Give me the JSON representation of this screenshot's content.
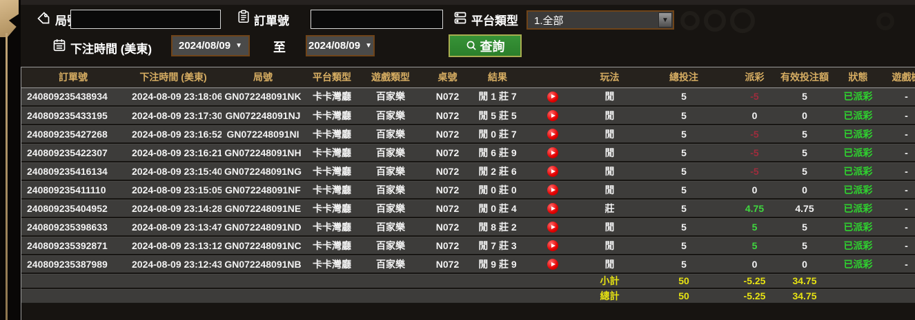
{
  "filters": {
    "round": {
      "label": "局號",
      "value": ""
    },
    "order": {
      "label": "訂單號",
      "value": ""
    },
    "platform": {
      "label": "平台類型",
      "value": "1.全部"
    },
    "bet_time": {
      "label": "下注時間 (美東)",
      "from": "2024/08/09",
      "to_label": "至",
      "to": "2024/08/09"
    },
    "query_label": "查詢"
  },
  "icons": [
    "tag-icon",
    "clipboard-icon",
    "platform-list-icon",
    "calendar-icon",
    "magnifier-icon",
    "replay-play-icon",
    "dropdown-caret-icon"
  ],
  "table": {
    "columns": [
      "訂單號",
      "下注時間 (美東)",
      "局號",
      "平台類型",
      "遊戲類型",
      "桌號",
      "結果",
      "",
      "玩法",
      "總投注",
      "派彩",
      "有效投注額",
      "狀態",
      "遊戲機"
    ],
    "rows": [
      {
        "order": "240809235438934",
        "time": "2024-08-09 23:18:06",
        "round": "GN072248091NK",
        "platform": "卡卡灣廳",
        "game": "百家樂",
        "table_no": "N072",
        "result": "閒 1 莊 7",
        "bet": "閒",
        "stake": "5",
        "payout": "-5",
        "valid": "5",
        "status": "已派彩",
        "extra": "-"
      },
      {
        "order": "240809235433195",
        "time": "2024-08-09 23:17:30",
        "round": "GN072248091NJ",
        "platform": "卡卡灣廳",
        "game": "百家樂",
        "table_no": "N072",
        "result": "閒 5 莊 5",
        "bet": "閒",
        "stake": "5",
        "payout": "0",
        "valid": "0",
        "status": "已派彩",
        "extra": "-"
      },
      {
        "order": "240809235427268",
        "time": "2024-08-09 23:16:52",
        "round": "GN072248091NI",
        "platform": "卡卡灣廳",
        "game": "百家樂",
        "table_no": "N072",
        "result": "閒 0 莊 7",
        "bet": "閒",
        "stake": "5",
        "payout": "-5",
        "valid": "5",
        "status": "已派彩",
        "extra": "-"
      },
      {
        "order": "240809235422307",
        "time": "2024-08-09 23:16:21",
        "round": "GN072248091NH",
        "platform": "卡卡灣廳",
        "game": "百家樂",
        "table_no": "N072",
        "result": "閒 6 莊 9",
        "bet": "閒",
        "stake": "5",
        "payout": "-5",
        "valid": "5",
        "status": "已派彩",
        "extra": "-"
      },
      {
        "order": "240809235416134",
        "time": "2024-08-09 23:15:40",
        "round": "GN072248091NG",
        "platform": "卡卡灣廳",
        "game": "百家樂",
        "table_no": "N072",
        "result": "閒 2 莊 6",
        "bet": "閒",
        "stake": "5",
        "payout": "-5",
        "valid": "5",
        "status": "已派彩",
        "extra": "-"
      },
      {
        "order": "240809235411110",
        "time": "2024-08-09 23:15:05",
        "round": "GN072248091NF",
        "platform": "卡卡灣廳",
        "game": "百家樂",
        "table_no": "N072",
        "result": "閒 0 莊 0",
        "bet": "閒",
        "stake": "5",
        "payout": "0",
        "valid": "0",
        "status": "已派彩",
        "extra": "-"
      },
      {
        "order": "240809235404952",
        "time": "2024-08-09 23:14:28",
        "round": "GN072248091NE",
        "platform": "卡卡灣廳",
        "game": "百家樂",
        "table_no": "N072",
        "result": "閒 0 莊 4",
        "bet": "莊",
        "stake": "5",
        "payout": "4.75",
        "valid": "4.75",
        "status": "已派彩",
        "extra": "-"
      },
      {
        "order": "240809235398633",
        "time": "2024-08-09 23:13:47",
        "round": "GN072248091ND",
        "platform": "卡卡灣廳",
        "game": "百家樂",
        "table_no": "N072",
        "result": "閒 8 莊 2",
        "bet": "閒",
        "stake": "5",
        "payout": "5",
        "valid": "5",
        "status": "已派彩",
        "extra": "-"
      },
      {
        "order": "240809235392871",
        "time": "2024-08-09 23:13:12",
        "round": "GN072248091NC",
        "platform": "卡卡灣廳",
        "game": "百家樂",
        "table_no": "N072",
        "result": "閒 7 莊 3",
        "bet": "閒",
        "stake": "5",
        "payout": "5",
        "valid": "5",
        "status": "已派彩",
        "extra": "-"
      },
      {
        "order": "240809235387989",
        "time": "2024-08-09 23:12:43",
        "round": "GN072248091NB",
        "platform": "卡卡灣廳",
        "game": "百家樂",
        "table_no": "N072",
        "result": "閒 9 莊 9",
        "bet": "閒",
        "stake": "5",
        "payout": "0",
        "valid": "0",
        "status": "已派彩",
        "extra": "-"
      }
    ],
    "subtotal": {
      "label": "小計",
      "stake": "50",
      "payout": "-5.25",
      "valid": "34.75"
    },
    "total": {
      "label": "總計",
      "stake": "50",
      "payout": "-5.25",
      "valid": "34.75"
    }
  },
  "colors": {
    "header_gold": "#d6ad62",
    "row_bg": "#3d3c3a",
    "positive_green": "#3fd83f",
    "negative_red": "#9e2c3c",
    "status_green": "#2fd32f",
    "summary_yellow": "#e7e312",
    "button_green": "#2b7f2b",
    "select_border_brown": "#6f4419"
  }
}
